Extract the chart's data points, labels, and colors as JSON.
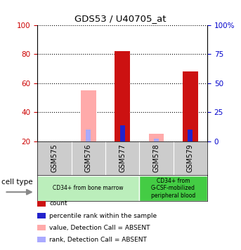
{
  "title": "GDS53 / U40705_at",
  "samples": [
    "GSM575",
    "GSM576",
    "GSM577",
    "GSM578",
    "GSM579"
  ],
  "cell_groups": [
    {
      "label": "CD34+ from bone marrow",
      "samples": [
        "GSM575",
        "GSM576",
        "GSM577"
      ],
      "color": "#bbeebb"
    },
    {
      "label": "CD34+ from\nG-CSF-mobilized\nperipheral blood",
      "samples": [
        "GSM578",
        "GSM579"
      ],
      "color": "#44cc44"
    }
  ],
  "bars": {
    "GSM575": {
      "red_value": null,
      "red_absent": null,
      "blue_value": null,
      "blue_absent": null
    },
    "GSM576": {
      "red_absent": 55,
      "blue_absent": 28,
      "red_value": null,
      "blue_value": null
    },
    "GSM577": {
      "red_value": 82,
      "blue_value": 31,
      "red_absent": null,
      "blue_absent": null
    },
    "GSM578": {
      "red_absent": 25,
      "blue_absent": 22,
      "red_value": null,
      "blue_value": null
    },
    "GSM579": {
      "red_value": 68,
      "blue_value": 28,
      "red_absent": null,
      "blue_absent": null
    }
  },
  "ylim_left": [
    20,
    100
  ],
  "ylim_right": [
    0,
    100
  ],
  "yticks_left": [
    20,
    40,
    60,
    80,
    100
  ],
  "yticks_right": [
    0,
    25,
    50,
    75,
    100
  ],
  "ytick_labels_right": [
    "0",
    "25",
    "50",
    "75",
    "100%"
  ],
  "left_axis_color": "#cc0000",
  "right_axis_color": "#0000cc",
  "bar_width": 0.45,
  "colors": {
    "red_present": "#cc1111",
    "blue_present": "#2222cc",
    "red_absent": "#ffaaaa",
    "blue_absent": "#aaaaff"
  },
  "legend_items": [
    {
      "color": "#cc1111",
      "label": "count"
    },
    {
      "color": "#2222cc",
      "label": "percentile rank within the sample"
    },
    {
      "color": "#ffaaaa",
      "label": "value, Detection Call = ABSENT"
    },
    {
      "color": "#aaaaff",
      "label": "rank, Detection Call = ABSENT"
    }
  ]
}
